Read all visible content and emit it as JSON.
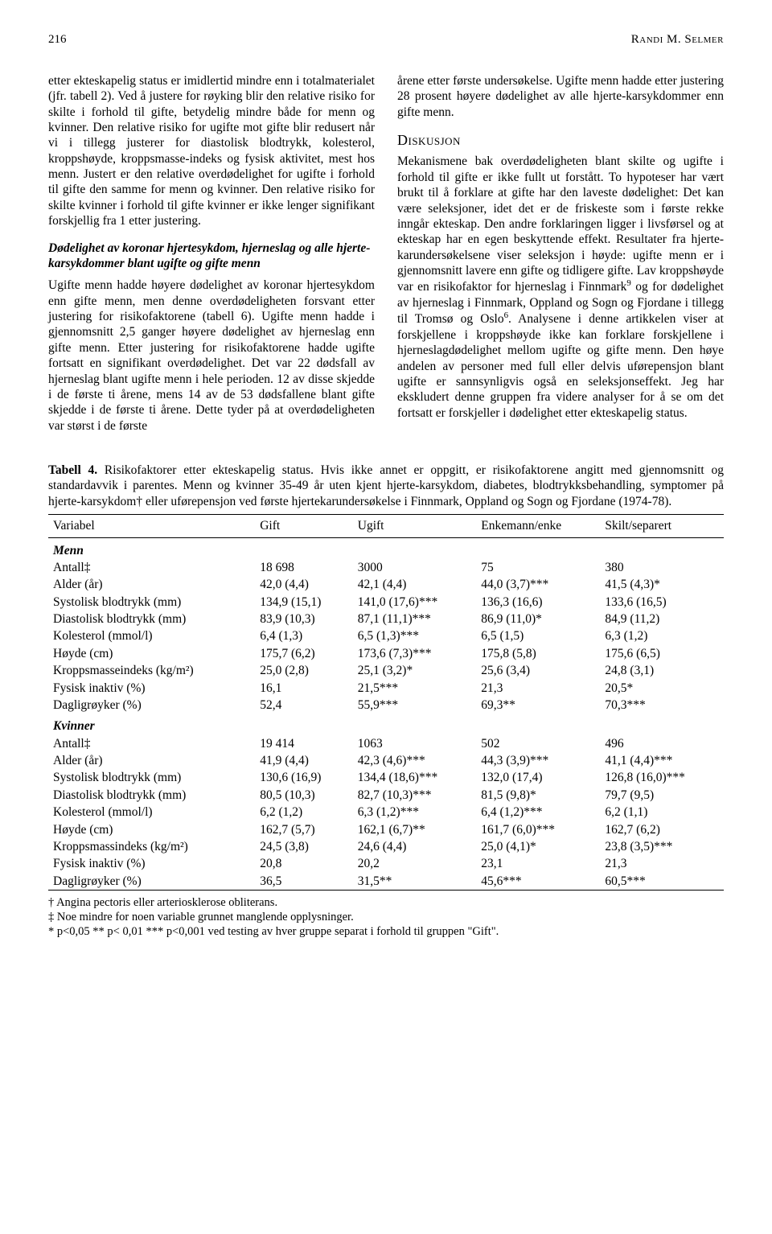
{
  "header": {
    "page_number": "216",
    "running_head": "Randi M. Selmer"
  },
  "left_col": {
    "p1": "etter ekteskapelig status er imidlertid mindre enn i totalmaterialet (jfr. tabell 2). Ved å justere for røyking blir den relative risiko for skilte i forhold til gifte, betydelig mindre både for menn og kvinner. Den relative risiko for ugifte mot gifte blir redusert når vi i tillegg justerer for diastolisk blodtrykk, kolesterol, kroppshøyde, kroppsmasse-indeks og fysisk aktivitet, mest hos menn. Justert er den relative overdødelighet for ugifte i forhold til gifte den samme for menn og kvinner. Den relative risiko for skilte kvinner i forhold til gifte kvinner er ikke lenger signifikant forskjellig fra 1 etter justering.",
    "sub": "Dødelighet av koronar hjertesykdom, hjerneslag og alle hjerte-karsykdommer blant ugifte og gifte menn",
    "p2": "Ugifte menn hadde høyere dødelighet av koronar hjertesykdom enn gifte menn, men denne overdødeligheten forsvant etter justering for risikofaktorene (tabell 6). Ugifte menn hadde i gjennomsnitt 2,5 ganger høyere dødelighet av hjerneslag enn gifte menn. Etter justering for risikofaktorene hadde ugifte fortsatt en signifikant overdødelighet. Det var 22 dødsfall av hjerneslag blant ugifte menn i hele perioden. 12 av disse skjedde i de første ti årene, mens 14 av de 53 dødsfallene blant gifte skjedde i de første ti årene. Dette tyder på at overdødeligheten var størst i de første"
  },
  "right_col": {
    "p1": "årene etter første undersøkelse. Ugifte menn hadde etter justering 28 prosent høyere dødelighet av alle hjerte-karsykdommer enn gifte menn.",
    "section": "Diskusjon",
    "p2a": "Mekanismene bak overdødeligheten blant skilte og ugifte i forhold til gifte er ikke fullt ut forstått. To hypoteser har vært brukt til å forklare at gifte har den laveste dødelighet: Det kan være seleksjoner, idet det er de friskeste som i første rekke inngår ekteskap. Den andre forklaringen ligger i livsførsel og at ekteskap har en egen beskyttende effekt. Resultater fra hjerte-karundersøkelsene viser seleksjon i høyde: ugifte menn er i gjennomsnitt lavere enn gifte og tidligere gifte. Lav kroppshøyde var en risikofaktor for hjerneslag i Finnmark",
    "sup9": "9",
    "p2b": " og for dødelighet av hjerneslag i Finnmark, Oppland og Sogn og Fjordane i tillegg til Tromsø og Oslo",
    "sup6": "6",
    "p2c": ". Analysene i denne artikkelen viser at forskjellene i kroppshøyde ikke kan forklare forskjellene i hjerneslagdødelighet mellom ugifte og gifte menn. Den høye andelen av personer med full eller delvis uførepensjon blant ugifte er sannsynligvis også en seleksjonseffekt. Jeg har ekskludert denne gruppen fra videre analyser for å se om det fortsatt er forskjeller i dødelighet etter ekteskapelig status."
  },
  "table": {
    "caption_strong": "Tabell 4.",
    "caption_rest": "  Risikofaktorer etter ekteskapelig status. Hvis ikke annet er oppgitt, er risikofaktorene angitt med gjennomsnitt og standardavvik i parentes. Menn og kvinner 35-49 år uten kjent hjerte-karsykdom, diabetes, blodtrykksbehandling, symptomer på hjerte-karsykdom† eller uførepensjon ved første hjertekarundersøkelse i Finnmark, Oppland og Sogn og Fjordane (1974-78).",
    "headers": [
      "Variabel",
      "Gift",
      "Ugift",
      "Enkemann/enke",
      "Skilt/separert"
    ],
    "groups": [
      {
        "label": "Menn",
        "rows": [
          [
            "Antall‡",
            "18 698",
            "3000",
            "75",
            "380"
          ],
          [
            "Alder (år)",
            "42,0 (4,4)",
            "42,1 (4,4)",
            "44,0 (3,7)***",
            "41,5 (4,3)*"
          ],
          [
            "Systolisk blodtrykk (mm)",
            "134,9 (15,1)",
            "141,0 (17,6)***",
            "136,3 (16,6)",
            "133,6 (16,5)"
          ],
          [
            "Diastolisk blodtrykk (mm)",
            "83,9 (10,3)",
            "87,1 (11,1)***",
            "86,9 (11,0)*",
            "84,9 (11,2)"
          ],
          [
            "Kolesterol (mmol/l)",
            "6,4 (1,3)",
            "6,5 (1,3)***",
            "6,5 (1,5)",
            "6,3 (1,2)"
          ],
          [
            "Høyde (cm)",
            "175,7 (6,2)",
            "173,6 (7,3)***",
            "175,8 (5,8)",
            "175,6 (6,5)"
          ],
          [
            "Kroppsmasseindeks (kg/m²)",
            "25,0 (2,8)",
            "25,1 (3,2)*",
            "25,6 (3,4)",
            "24,8 (3,1)"
          ],
          [
            "Fysisk inaktiv (%)",
            "16,1",
            "21,5***",
            "21,3",
            "20,5*"
          ],
          [
            "Dagligrøyker (%)",
            "52,4",
            "55,9***",
            "69,3**",
            "70,3***"
          ]
        ]
      },
      {
        "label": "Kvinner",
        "rows": [
          [
            "Antall‡",
            "19 414",
            "1063",
            "502",
            "496"
          ],
          [
            "Alder (år)",
            "41,9 (4,4)",
            "42,3 (4,6)***",
            "44,3 (3,9)***",
            "41,1 (4,4)***"
          ],
          [
            "Systolisk blodtrykk (mm)",
            "130,6 (16,9)",
            "134,4 (18,6)***",
            "132,0 (17,4)",
            "126,8 (16,0)***"
          ],
          [
            "Diastolisk blodtrykk (mm)",
            "80,5 (10,3)",
            "82,7 (10,3)***",
            "81,5 (9,8)*",
            "79,7 (9,5)"
          ],
          [
            "Kolesterol (mmol/l)",
            "6,2 (1,2)",
            "6,3 (1,2)***",
            "6,4 (1,2)***",
            "6,2 (1,1)"
          ],
          [
            "Høyde (cm)",
            "162,7 (5,7)",
            "162,1 (6,7)**",
            "161,7 (6,0)***",
            "162,7 (6,2)"
          ],
          [
            "Kroppsmassindeks (kg/m²)",
            "24,5 (3,8)",
            "24,6 (4,4)",
            "25,0 (4,1)*",
            "23,8 (3,5)***"
          ],
          [
            "Fysisk inaktiv (%)",
            "20,8",
            "20,2",
            "23,1",
            "21,3"
          ],
          [
            "Dagligrøyker (%)",
            "36,5",
            "31,5**",
            "45,6***",
            "60,5***"
          ]
        ]
      }
    ],
    "footnotes": [
      "† Angina pectoris eller arteriosklerose obliterans.",
      "‡ Noe mindre for noen variable grunnet manglende opplysninger.",
      "* p<0,05 ** p< 0,01 *** p<0,001 ved testing av hver gruppe separat i forhold til gruppen \"Gift\"."
    ]
  }
}
